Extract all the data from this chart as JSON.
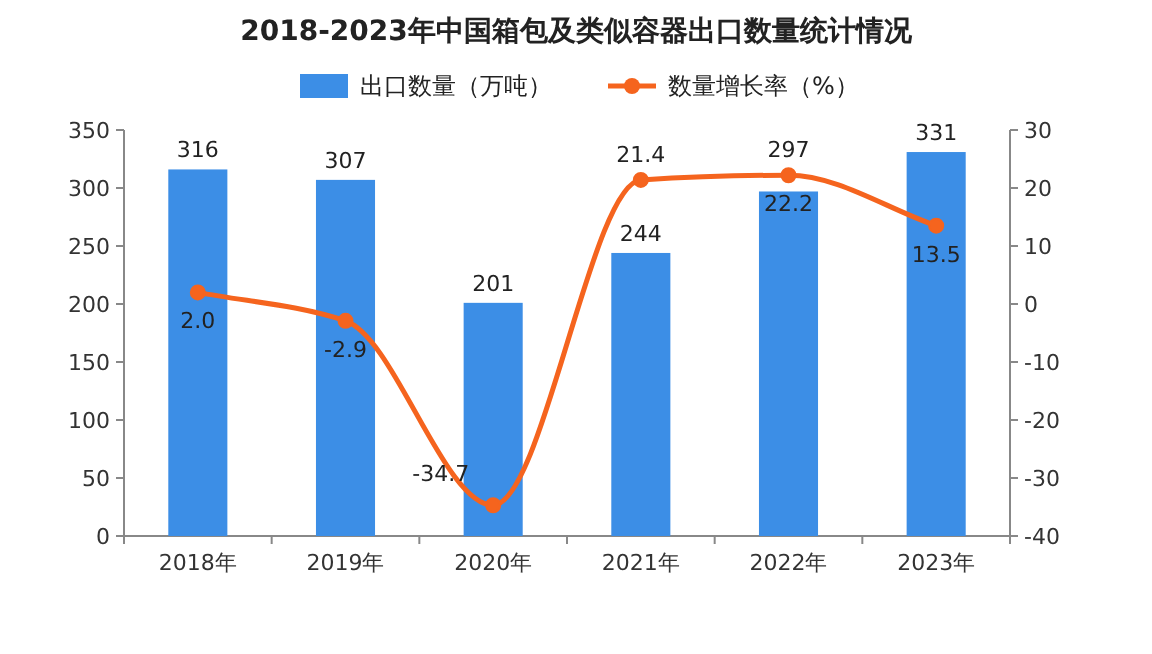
{
  "chart_data": {
    "type": "bar",
    "title": "2018-2023年中国箱包及类似容器出口数量统计情况",
    "categories": [
      "2018年",
      "2019年",
      "2020年",
      "2021年",
      "2022年",
      "2023年"
    ],
    "series": [
      {
        "name": "出口数量（万吨）",
        "color": "#3c8ee6",
        "values": [
          316,
          307,
          201,
          244,
          297,
          331
        ]
      },
      {
        "name": "数量增长率（%）",
        "type": "line",
        "axis": "y2",
        "color": "#f5641e",
        "marker": "circle",
        "values": [
          2.0,
          -2.9,
          -34.7,
          21.4,
          22.2,
          13.5
        ],
        "value_labels": [
          "2.0",
          "-2.9",
          "-34.7",
          "21.4",
          "22.2",
          "13.5"
        ]
      }
    ],
    "ylim": [
      0,
      350
    ],
    "yticks": [
      0,
      50,
      100,
      150,
      200,
      250,
      300,
      350
    ],
    "y2lim": [
      -40,
      30
    ],
    "y2ticks": [
      -40,
      -30,
      -20,
      -10,
      0,
      10,
      20,
      30
    ],
    "data_labels": true,
    "legend": "top",
    "grid": false
  }
}
